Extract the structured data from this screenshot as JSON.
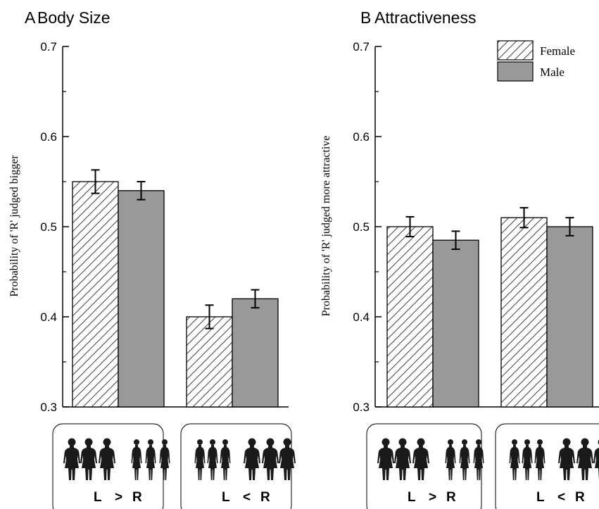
{
  "chart_data": [
    {
      "type": "bar",
      "panel_letter": "A",
      "title": "Body Size",
      "ylabel": "Probability of 'R' judged bigger",
      "xlabel": "",
      "ylim": [
        0.3,
        0.7
      ],
      "yticks": [
        "0.3",
        "0.4",
        "0.5",
        "0.6",
        "0.7"
      ],
      "categories": [
        "L > R",
        "L < R"
      ],
      "category_parts": [
        [
          "L",
          ">",
          "R"
        ],
        [
          "L",
          "<",
          "R"
        ]
      ],
      "series": [
        {
          "name": "Female",
          "values": [
            0.55,
            0.4
          ],
          "errors": [
            0.013,
            0.013
          ]
        },
        {
          "name": "Male",
          "values": [
            0.54,
            0.42
          ],
          "errors": [
            0.01,
            0.01
          ]
        }
      ]
    },
    {
      "type": "bar",
      "panel_letter": "B",
      "title": "Attractiveness",
      "ylabel": "Probability of 'R' judged more attractive",
      "xlabel": "",
      "ylim": [
        0.3,
        0.7
      ],
      "yticks": [
        "0.3",
        "0.4",
        "0.5",
        "0.6",
        "0.7"
      ],
      "categories": [
        "L > R",
        "L < R"
      ],
      "category_parts": [
        [
          "L",
          ">",
          "R"
        ],
        [
          "L",
          "<",
          "R"
        ]
      ],
      "series": [
        {
          "name": "Female",
          "values": [
            0.5,
            0.51
          ],
          "errors": [
            0.011,
            0.011
          ]
        },
        {
          "name": "Male",
          "values": [
            0.485,
            0.5
          ],
          "errors": [
            0.01,
            0.01
          ]
        }
      ]
    }
  ],
  "legend": {
    "entries": [
      {
        "name": "Female",
        "pattern": "hatched"
      },
      {
        "name": "Male",
        "color": "#999999"
      }
    ],
    "position": "top-right"
  },
  "colors": {
    "female_fill": "#ffffff",
    "female_hatch": "#444444",
    "male_fill": "#999999",
    "silhouette": "#1a1a1a"
  },
  "icons": [
    "female-silhouette-icon"
  ]
}
